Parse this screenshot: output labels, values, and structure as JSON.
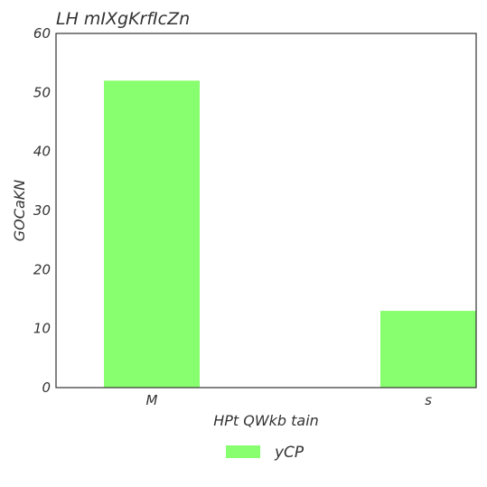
{
  "chart_data": {
    "type": "bar",
    "title": "LH mIXgKrfIcZn",
    "xlabel": "HPt QWkb tain",
    "ylabel": "GOCaKN",
    "categories": [
      "M",
      "s"
    ],
    "series": [
      {
        "name": "yCP",
        "values": [
          52,
          13
        ],
        "color": "#88ff6e"
      }
    ],
    "ylim": [
      0,
      60
    ],
    "yticks": [
      0,
      10,
      20,
      30,
      40,
      50,
      60
    ],
    "grid": false,
    "legend": "bottom-center"
  }
}
